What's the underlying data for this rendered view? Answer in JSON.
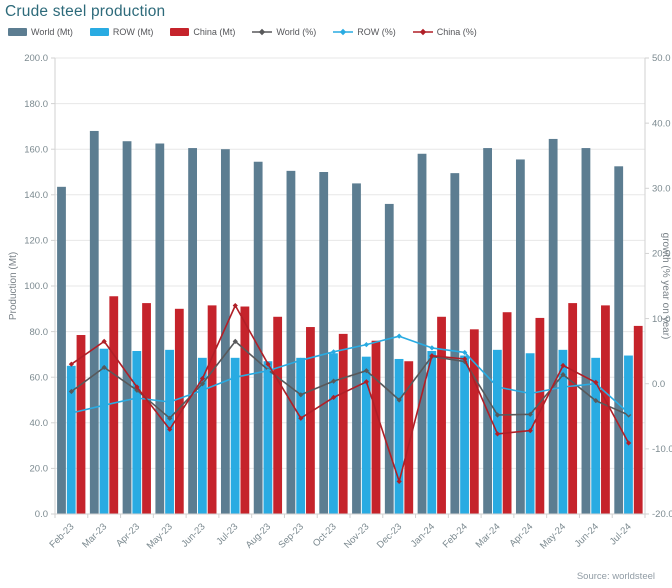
{
  "header": {
    "title": "Crude steel production"
  },
  "source": "Source: worldsteel",
  "colors": {
    "title": "#2d6a7a",
    "world_bar": "#5c7d91",
    "row_bar": "#29abe2",
    "china_bar": "#c5232b",
    "world_line": "#58595b",
    "row_line": "#29abe2",
    "china_line": "#b01f27",
    "grid": "#e7e7e7",
    "axis_line": "#d2d2d2",
    "tick_text": "#7c8a90",
    "axis_title_text": "#7a8288"
  },
  "chart_data": {
    "type": "bar",
    "subtype": "grouped-bars-with-lines",
    "title": "Crude steel production",
    "categories": [
      "Feb-23",
      "Mar-23",
      "Apr-23",
      "May-23",
      "Jun-23",
      "Jul-23",
      "Aug-23",
      "Sep-23",
      "Oct-23",
      "Nov-23",
      "Dec-23",
      "Jan-24",
      "Feb-24",
      "Mar-24",
      "Apr-24",
      "May-24",
      "Jun-24",
      "Jul-24"
    ],
    "series": [
      {
        "name": "World (Mt)",
        "type": "bar",
        "axis": "left",
        "color": "#5c7d91",
        "values": [
          143.5,
          168.0,
          163.5,
          162.5,
          160.5,
          160.0,
          154.5,
          150.5,
          150.0,
          145.0,
          136.0,
          158.0,
          149.5,
          160.5,
          155.5,
          164.5,
          160.5,
          152.5
        ]
      },
      {
        "name": "ROW (Mt)",
        "type": "bar",
        "axis": "left",
        "color": "#29abe2",
        "values": [
          65.0,
          72.5,
          71.5,
          72.0,
          68.5,
          68.5,
          67.0,
          68.5,
          70.5,
          69.0,
          68.0,
          71.5,
          69.5,
          72.0,
          70.5,
          72.0,
          68.5,
          69.5
        ]
      },
      {
        "name": "China (Mt)",
        "type": "bar",
        "axis": "left",
        "color": "#c5232b",
        "values": [
          78.5,
          95.5,
          92.5,
          90.0,
          91.5,
          91.0,
          86.5,
          82.0,
          79.0,
          76.0,
          67.0,
          86.5,
          81.0,
          88.5,
          86.0,
          92.5,
          91.5,
          82.5
        ]
      },
      {
        "name": "World (%)",
        "type": "line",
        "axis": "right",
        "color": "#58595b",
        "values": [
          -1.2,
          2.5,
          -1.0,
          -5.3,
          0.0,
          6.5,
          2.1,
          -1.7,
          0.4,
          2.0,
          -2.5,
          4.2,
          3.4,
          -4.8,
          -4.7,
          1.4,
          -2.6,
          -4.8
        ]
      },
      {
        "name": "ROW (%)",
        "type": "line",
        "axis": "right",
        "color": "#29abe2",
        "values": [
          -4.5,
          -3.3,
          -2.2,
          -2.8,
          -1.0,
          1.0,
          2.0,
          3.6,
          4.9,
          6.0,
          7.3,
          5.5,
          4.8,
          -0.5,
          -1.5,
          -0.5,
          0.0,
          -4.5
        ]
      },
      {
        "name": "China (%)",
        "type": "line",
        "axis": "right",
        "color": "#b01f27",
        "values": [
          3.0,
          6.5,
          -0.5,
          -7.0,
          0.8,
          12.0,
          3.0,
          -5.3,
          -2.1,
          0.3,
          -15.0,
          4.3,
          3.8,
          -7.7,
          -7.2,
          2.8,
          0.2,
          -9.1
        ]
      }
    ],
    "left_axis": {
      "label": "Production (Mt)",
      "min": 0,
      "max": 200,
      "step": 20,
      "tick_format": "one-decimal"
    },
    "right_axis": {
      "label": "growth (% year on year)",
      "min": -20,
      "max": 50,
      "step": 10,
      "tick_format": "one-decimal"
    },
    "grid": true,
    "legend_position": "top",
    "source": "Source: worldsteel"
  }
}
